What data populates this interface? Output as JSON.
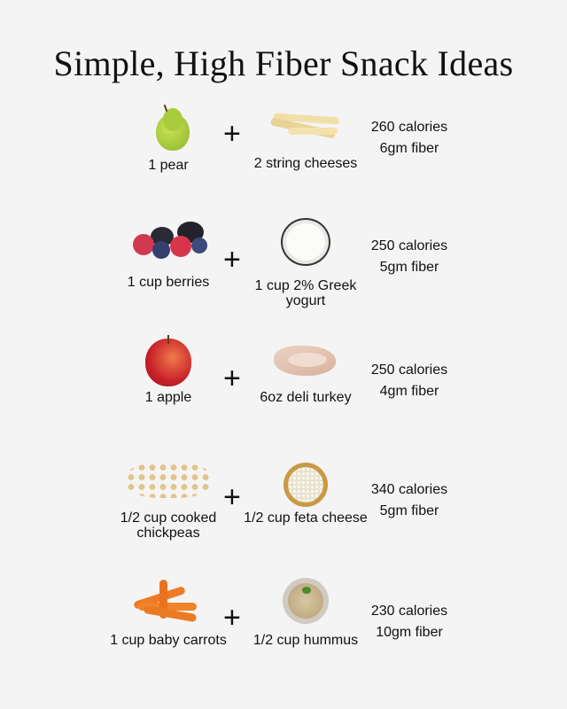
{
  "title": "Simple, High Fiber Snack Ideas",
  "snacks": [
    {
      "left": {
        "label": "1 pear",
        "icon": "pear-icon"
      },
      "right": {
        "label": "2 string cheeses",
        "icon": "string-cheese-icon"
      },
      "calories": "260 calories",
      "fiber": "6gm fiber"
    },
    {
      "left": {
        "label": "1 cup berries",
        "icon": "berries-icon"
      },
      "right": {
        "label": "1 cup 2% Greek yogurt",
        "icon": "greek-yogurt-icon"
      },
      "calories": "250 calories",
      "fiber": "5gm fiber"
    },
    {
      "left": {
        "label": "1 apple",
        "icon": "apple-icon"
      },
      "right": {
        "label": "6oz deli turkey",
        "icon": "deli-turkey-icon"
      },
      "calories": "250 calories",
      "fiber": "4gm fiber"
    },
    {
      "left": {
        "label": "1/2 cup cooked chickpeas",
        "icon": "chickpeas-icon"
      },
      "right": {
        "label": "1/2 cup feta cheese",
        "icon": "feta-cheese-icon"
      },
      "calories": "340 calories",
      "fiber": "5gm fiber"
    },
    {
      "left": {
        "label": "1 cup baby carrots",
        "icon": "baby-carrots-icon"
      },
      "right": {
        "label": "1/2 cup hummus",
        "icon": "hummus-icon"
      },
      "calories": "230 calories",
      "fiber": "10gm fiber"
    }
  ],
  "plus_symbol": "+"
}
